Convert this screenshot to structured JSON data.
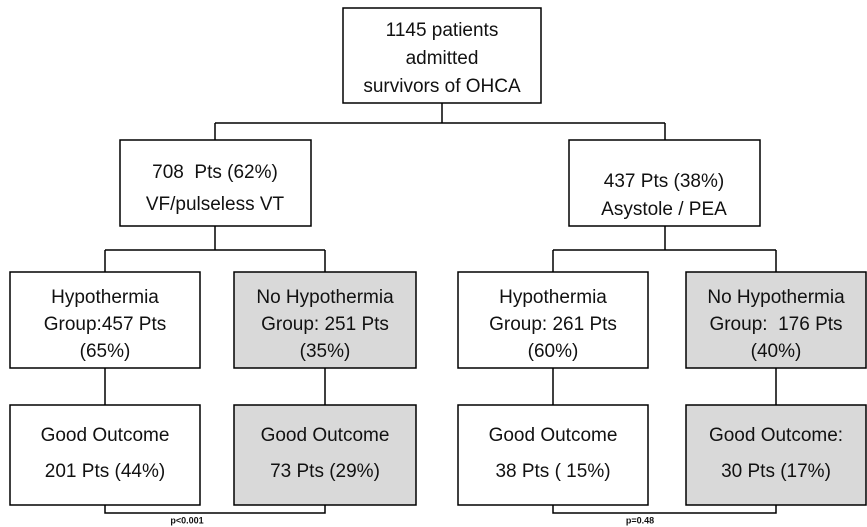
{
  "nodes": [
    {
      "lines": [
        "1145 patients",
        "admitted",
        "survivors of OHCA"
      ]
    },
    {
      "lines": [
        "708  Pts (62%)",
        "VF/pulseless VT"
      ]
    },
    {
      "lines": [
        "437 Pts (38%)",
        "Asystole / PEA"
      ]
    },
    {
      "lines": [
        "Hypothermia",
        "Group:457 Pts",
        "(65%)"
      ]
    },
    {
      "lines": [
        "No Hypothermia",
        "Group: 251 Pts",
        "(35%)"
      ]
    },
    {
      "lines": [
        "Hypothermia",
        "Group: 261 Pts",
        "(60%)"
      ]
    },
    {
      "lines": [
        "No Hypothermia",
        "Group:  176 Pts",
        "(40%)"
      ]
    },
    {
      "lines": [
        "Good Outcome",
        "201 Pts (44%)"
      ]
    },
    {
      "lines": [
        "Good Outcome",
        "73 Pts (29%)"
      ]
    },
    {
      "lines": [
        "Good Outcome",
        "38 Pts ( 15%)"
      ]
    },
    {
      "lines": [
        "Good Outcome:",
        "30 Pts (17%)"
      ]
    }
  ],
  "comparisons": [
    "p<0.001",
    "p=0.48"
  ]
}
